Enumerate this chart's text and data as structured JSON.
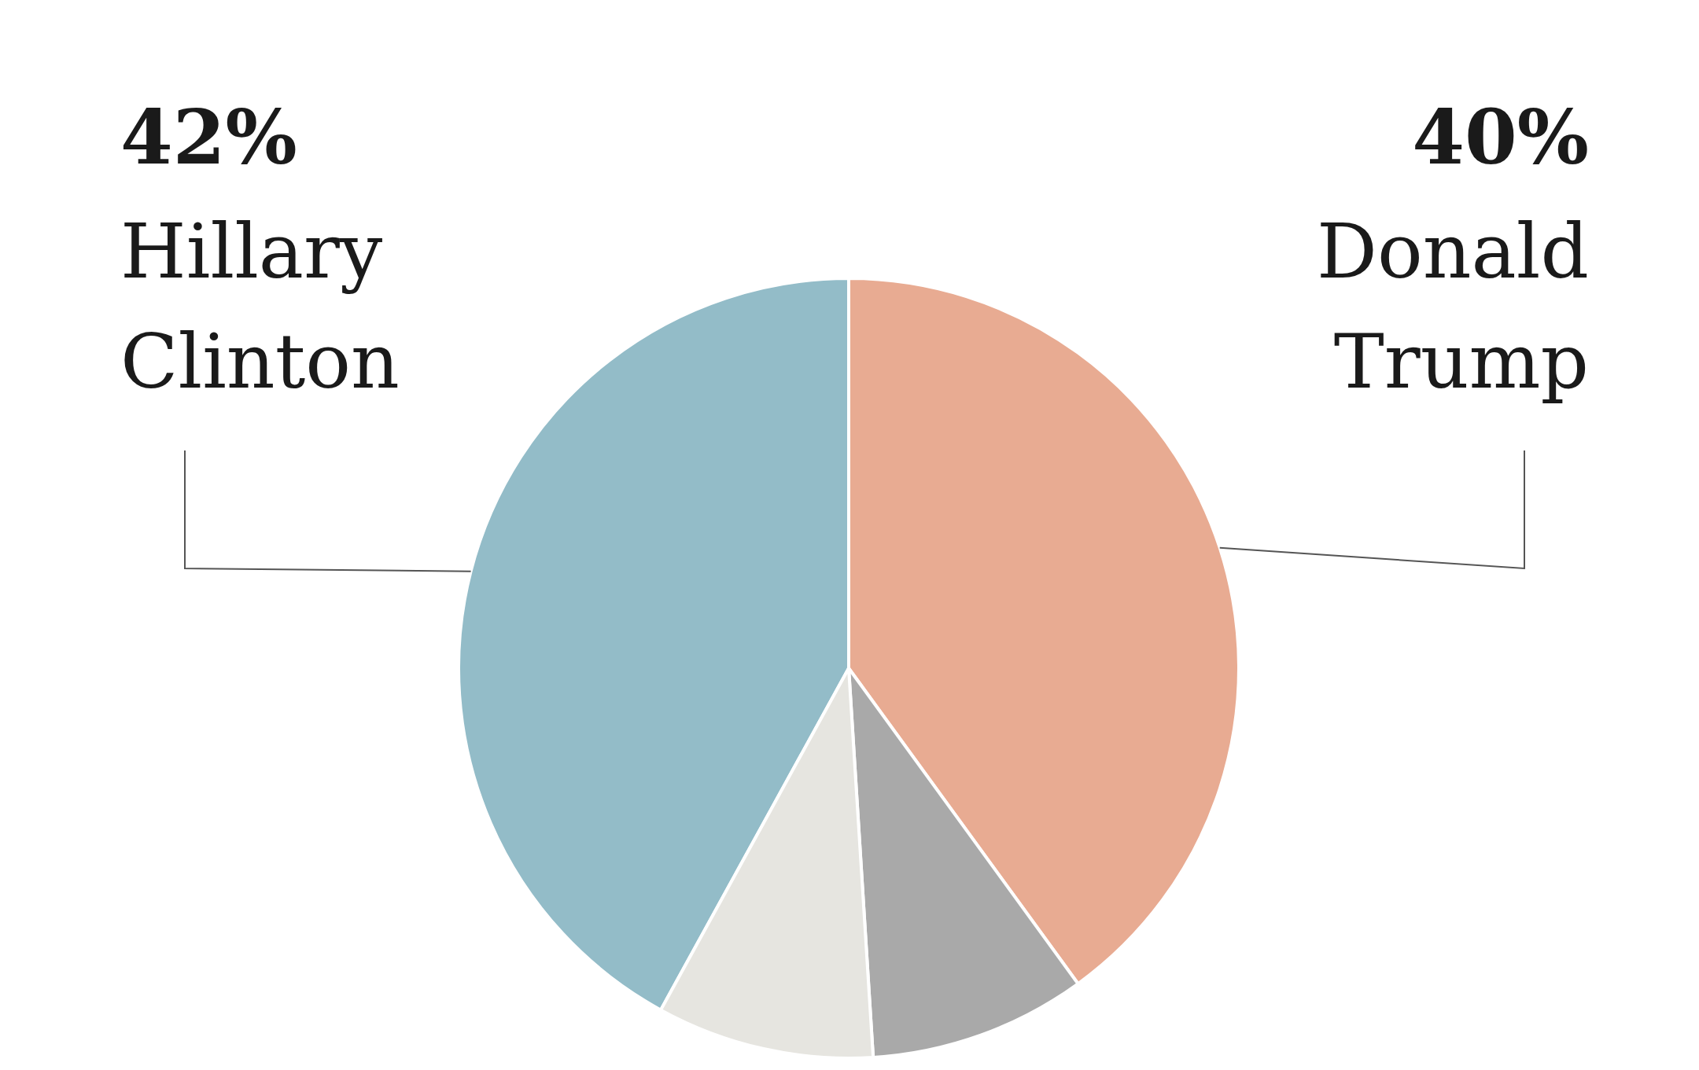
{
  "chart_data": {
    "type": "pie",
    "categories": [
      "Hillary Clinton",
      "Donald Trump",
      null,
      null
    ],
    "values": [
      42,
      40,
      9,
      9
    ],
    "value_labels": [
      "42%",
      "40%",
      null,
      null
    ],
    "colors": [
      "#93bcc8",
      "#e8ab92",
      "#a9a9a9",
      "#e6e5e0"
    ],
    "legend": false
  }
}
